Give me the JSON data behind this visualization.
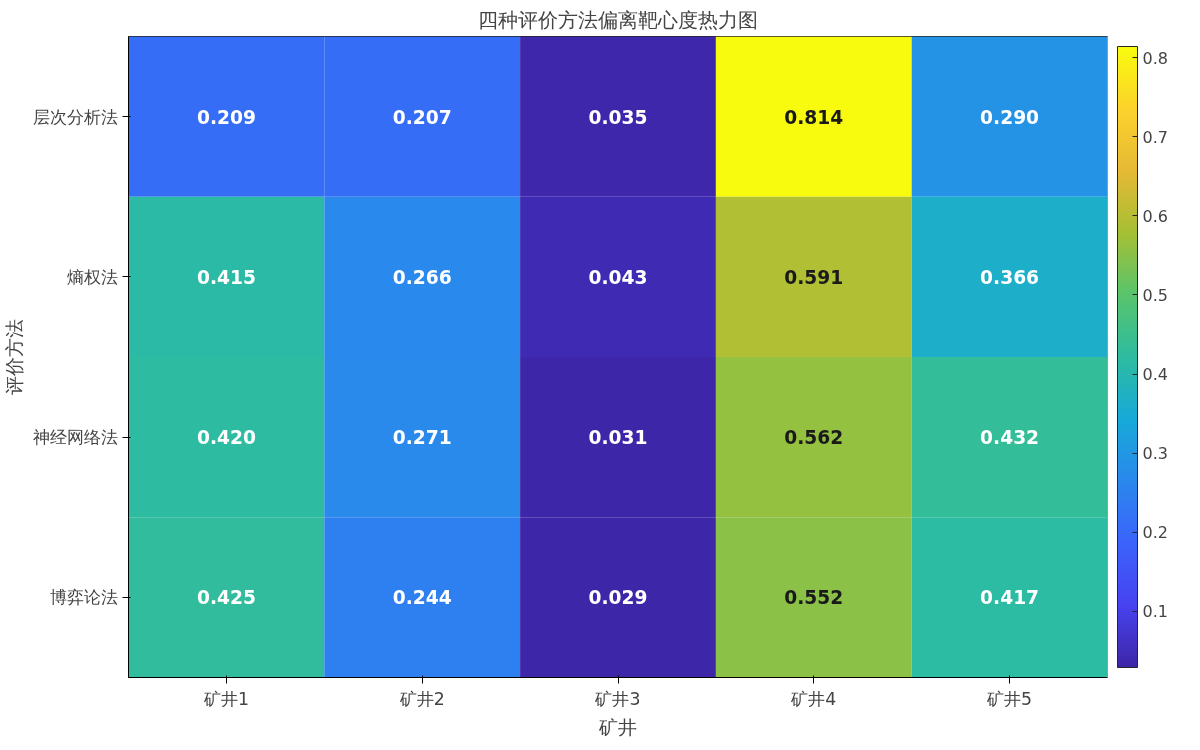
{
  "chart_data": {
    "type": "heatmap",
    "title": "四种评价方法偏离靶心度热力图",
    "xlabel": "矿井",
    "ylabel": "评价方法",
    "categories": [
      "矿井1",
      "矿井2",
      "矿井3",
      "矿井4",
      "矿井5"
    ],
    "y_categories": [
      "层次分析法",
      "熵权法",
      "神经网络法",
      "博弈论法"
    ],
    "cells": [
      [
        0.209,
        0.207,
        0.035,
        0.814,
        0.29
      ],
      [
        0.415,
        0.266,
        0.043,
        0.591,
        0.366
      ],
      [
        0.42,
        0.271,
        0.031,
        0.562,
        0.432
      ],
      [
        0.425,
        0.244,
        0.029,
        0.552,
        0.417
      ]
    ],
    "clim": [
      0.029,
      0.814
    ],
    "cticks": [
      0.1,
      0.2,
      0.3,
      0.4,
      0.5,
      0.6,
      0.7,
      0.8
    ],
    "cell_labels": [
      [
        "0.209",
        "0.207",
        "0.035",
        "0.814",
        "0.290"
      ],
      [
        "0.415",
        "0.266",
        "0.043",
        "0.591",
        "0.366"
      ],
      [
        "0.420",
        "0.271",
        "0.031",
        "0.562",
        "0.432"
      ],
      [
        "0.425",
        "0.244",
        "0.029",
        "0.552",
        "0.417"
      ]
    ]
  }
}
